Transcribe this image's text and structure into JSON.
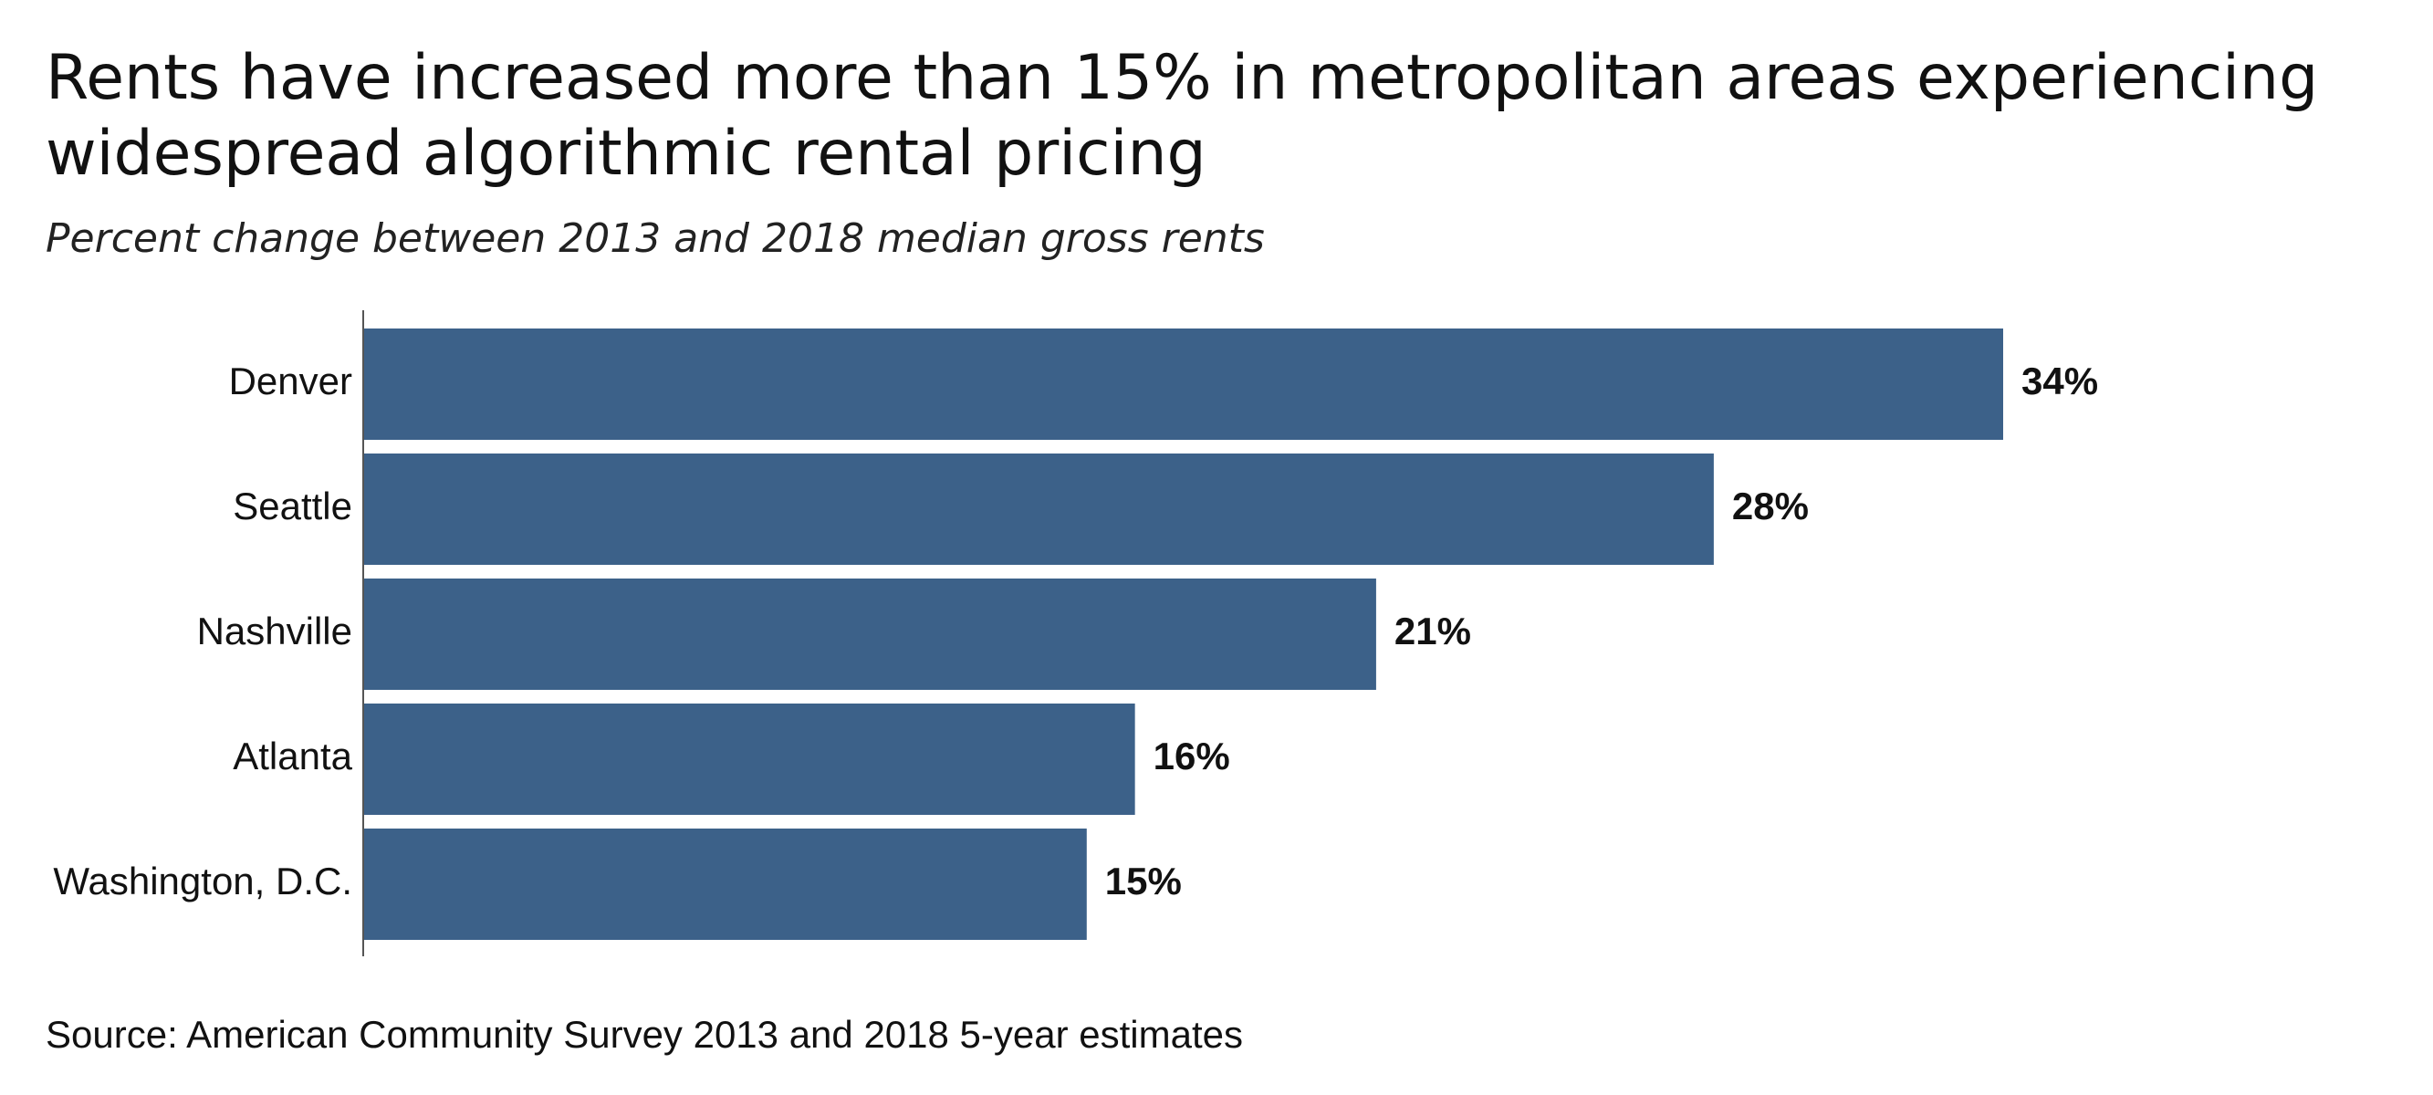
{
  "chart_data": {
    "type": "bar",
    "orientation": "horizontal",
    "title": "Rents have increased more than 15% in metropolitan areas experiencing widespread algorithmic rental pricing",
    "subtitle": "Percent change between 2013 and 2018 median gross rents",
    "categories": [
      "Denver",
      "Seattle",
      "Nashville",
      "Atlanta",
      "Washington, D.C."
    ],
    "values": [
      34,
      28,
      21,
      16,
      15
    ],
    "value_labels": [
      "34%",
      "28%",
      "21%",
      "16%",
      "15%"
    ],
    "xlim": [
      0,
      34
    ],
    "xlabel": "",
    "ylabel": "",
    "grid": false,
    "legend": "none",
    "bar_color": "#3c6189",
    "source": "Source: American Community Survey 2013 and 2018 5-year estimates"
  }
}
